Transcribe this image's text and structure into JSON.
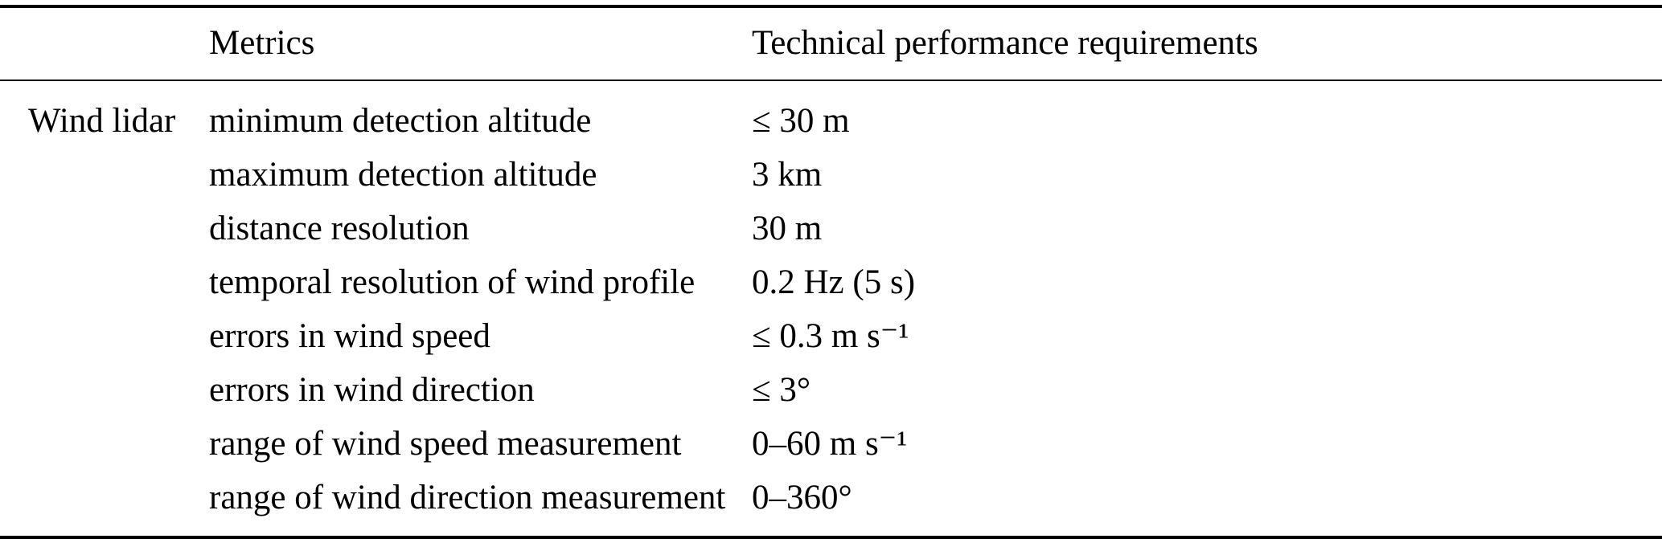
{
  "table": {
    "headers": {
      "col1": "",
      "col2": "Metrics",
      "col3": "Technical performance requirements"
    },
    "group_label": "Wind lidar",
    "rows": [
      {
        "metric": "minimum detection altitude",
        "value": "≤ 30 m"
      },
      {
        "metric": "maximum detection altitude",
        "value": "3 km"
      },
      {
        "metric": "distance resolution",
        "value": "30 m"
      },
      {
        "metric": "temporal resolution of wind profile",
        "value": "0.2 Hz (5 s)"
      },
      {
        "metric": "errors in wind speed",
        "value": "≤ 0.3 m s⁻¹"
      },
      {
        "metric": "errors in wind direction",
        "value": "≤ 3°"
      },
      {
        "metric": "range of wind speed measurement",
        "value": "0–60 m s⁻¹"
      },
      {
        "metric": "range of wind direction measurement",
        "value": "0–360°"
      }
    ]
  }
}
